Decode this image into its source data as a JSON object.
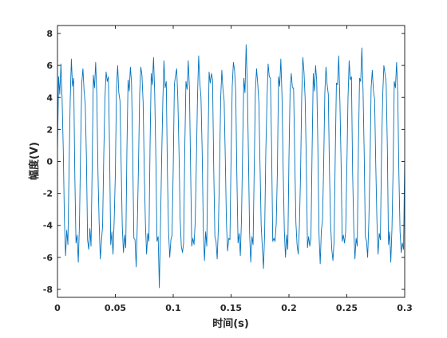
{
  "chart_data": {
    "type": "line",
    "x_label": "时间(s)",
    "y_label": "幅度(V)",
    "xlim": [
      0,
      0.3
    ],
    "ylim": [
      -8.5,
      8.5
    ],
    "xticks": [
      0,
      0.05,
      0.1,
      0.15,
      0.2,
      0.25,
      0.3
    ],
    "yticks": [
      -8,
      -6,
      -4,
      -2,
      0,
      2,
      4,
      6,
      8
    ],
    "grid": false,
    "box": true,
    "x": [
      0,
      0.001,
      0.002,
      0.003,
      0.004,
      0.005,
      0.006,
      0.007,
      0.008,
      0.009,
      0.01,
      0.011,
      0.012,
      0.013,
      0.014,
      0.015,
      0.016,
      0.017,
      0.018,
      0.019,
      0.02,
      0.021,
      0.022,
      0.023,
      0.024,
      0.025,
      0.026,
      0.027,
      0.028,
      0.029,
      0.03,
      0.031,
      0.032,
      0.033,
      0.034,
      0.035,
      0.036,
      0.037,
      0.038,
      0.039,
      0.04,
      0.041,
      0.042,
      0.043,
      0.044,
      0.045,
      0.046,
      0.047,
      0.048,
      0.049,
      0.05,
      0.051,
      0.052,
      0.053,
      0.054,
      0.055,
      0.056,
      0.057,
      0.058,
      0.059,
      0.06,
      0.061,
      0.062,
      0.063,
      0.064,
      0.065,
      0.066,
      0.067,
      0.068,
      0.069,
      0.07,
      0.071,
      0.072,
      0.073,
      0.074,
      0.075,
      0.076,
      0.077,
      0.078,
      0.079,
      0.08,
      0.081,
      0.082,
      0.083,
      0.084,
      0.085,
      0.086,
      0.087,
      0.088,
      0.089,
      0.09,
      0.091,
      0.092,
      0.093,
      0.094,
      0.095,
      0.096,
      0.097,
      0.098,
      0.099,
      0.1,
      0.101,
      0.102,
      0.103,
      0.104,
      0.105,
      0.106,
      0.107,
      0.108,
      0.109,
      0.11,
      0.111,
      0.112,
      0.113,
      0.114,
      0.115,
      0.116,
      0.117,
      0.118,
      0.119,
      0.12,
      0.121,
      0.122,
      0.123,
      0.124,
      0.125,
      0.126,
      0.127,
      0.128,
      0.129,
      0.13,
      0.131,
      0.132,
      0.133,
      0.134,
      0.135,
      0.136,
      0.137,
      0.138,
      0.139,
      0.14,
      0.141,
      0.142,
      0.143,
      0.144,
      0.145,
      0.146,
      0.147,
      0.148,
      0.149,
      0.15,
      0.151,
      0.152,
      0.153,
      0.154,
      0.155,
      0.156,
      0.157,
      0.158,
      0.159,
      0.16,
      0.161,
      0.162,
      0.163,
      0.164,
      0.165,
      0.166,
      0.167,
      0.168,
      0.169,
      0.17,
      0.171,
      0.172,
      0.173,
      0.174,
      0.175,
      0.176,
      0.177,
      0.178,
      0.179,
      0.18,
      0.181,
      0.182,
      0.183,
      0.184,
      0.185,
      0.186,
      0.187,
      0.188,
      0.189,
      0.19,
      0.191,
      0.192,
      0.193,
      0.194,
      0.195,
      0.196,
      0.197,
      0.198,
      0.199,
      0.2,
      0.201,
      0.202,
      0.203,
      0.204,
      0.205,
      0.206,
      0.207,
      0.208,
      0.209,
      0.21,
      0.211,
      0.212,
      0.213,
      0.214,
      0.215,
      0.216,
      0.217,
      0.218,
      0.219,
      0.22,
      0.221,
      0.222,
      0.223,
      0.224,
      0.225,
      0.226,
      0.227,
      0.228,
      0.229,
      0.23,
      0.231,
      0.232,
      0.233,
      0.234,
      0.235,
      0.236,
      0.237,
      0.238,
      0.239,
      0.24,
      0.241,
      0.242,
      0.243,
      0.244,
      0.245,
      0.246,
      0.247,
      0.248,
      0.249,
      0.25,
      0.251,
      0.252,
      0.253,
      0.254,
      0.255,
      0.256,
      0.257,
      0.258,
      0.259,
      0.26,
      0.261,
      0.262,
      0.263,
      0.264,
      0.265,
      0.266,
      0.267,
      0.268,
      0.269,
      0.27,
      0.271,
      0.272,
      0.273,
      0.274,
      0.275,
      0.276,
      0.277,
      0.278,
      0.279,
      0.28,
      0.281,
      0.282,
      0.283,
      0.284,
      0.285,
      0.286,
      0.287,
      0.288,
      0.289,
      0.29,
      0.291,
      0.292,
      0.293,
      0.294,
      0.295,
      0.296,
      0.297,
      0.298,
      0.299,
      0.3
    ],
    "series": [
      {
        "color": "#0072BD",
        "values": [
          0.6,
          5.3,
          4.2,
          6.1,
          3.9,
          0.8,
          -3.7,
          -5.9,
          -4.3,
          -5.2,
          -0.5,
          3.8,
          6.4,
          4.7,
          5.2,
          -0.9,
          -5.1,
          -4.6,
          -6.3,
          -3.9,
          0.9,
          4.9,
          5.8,
          4.4,
          3.6,
          0.3,
          -4.9,
          -5.5,
          -4.2,
          -5.3,
          -0.2,
          5.4,
          4.6,
          6.2,
          4.1,
          -0.7,
          -3.8,
          -6.1,
          -5.0,
          -4.0,
          0.4,
          3.9,
          5.6,
          5.0,
          5.3,
          0.9,
          -5.2,
          -4.4,
          -5.8,
          -3.7,
          -0.8,
          4.6,
          6.0,
          4.3,
          3.8,
          -0.1,
          -4.1,
          -5.7,
          -4.6,
          -5.4,
          0.7,
          5.1,
          4.4,
          5.9,
          4.9,
          0.5,
          -4.8,
          -4.9,
          -6.6,
          -3.9,
          -0.3,
          4.2,
          5.9,
          5.4,
          3.7,
          -0.6,
          -3.9,
          -5.8,
          -4.5,
          -5.0,
          1.0,
          5.5,
          4.8,
          6.5,
          4.3,
          0.2,
          -5.0,
          -4.7,
          -7.9,
          -4.1,
          0.1,
          3.7,
          6.3,
          4.6,
          5.0,
          -0.8,
          -4.4,
          -6.0,
          -4.9,
          -4.6,
          -0.5,
          4.8,
          5.4,
          5.8,
          3.9,
          0.6,
          -3.6,
          -5.3,
          -5.7,
          -5.1,
          0.8,
          5.0,
          4.5,
          6.3,
          4.6,
          -0.3,
          -5.3,
          -4.8,
          -5.2,
          -3.8,
          -0.1,
          4.1,
          6.6,
          4.9,
          4.0,
          0.7,
          -4.2,
          -6.2,
          -4.4,
          -5.3,
          0.5,
          5.6,
          4.9,
          5.5,
          5.1,
          -0.4,
          -4.7,
          -5.0,
          -6.1,
          -4.2,
          -0.7,
          3.9,
          5.7,
          4.5,
          3.8,
          0.2,
          -3.9,
          -5.6,
          -4.8,
          -4.9,
          0.3,
          4.7,
          6.2,
          5.7,
          4.4,
          -0.9,
          -5.1,
          -4.5,
          -5.9,
          -3.6,
          0.9,
          5.2,
          4.3,
          7.3,
          4.8,
          0.4,
          -4.5,
          -6.3,
          -4.7,
          -5.2,
          -0.4,
          4.4,
          5.8,
          4.9,
          3.7,
          -0.2,
          -4.0,
          -5.4,
          -6.7,
          -4.5,
          0.6,
          3.8,
          6.1,
          5.3,
          5.2,
          0.9,
          -5.0,
          -4.8,
          -5.0,
          -3.9,
          -0.6,
          5.3,
          4.7,
          6.4,
          4.1,
          -0.5,
          -4.3,
          -6.0,
          -4.6,
          -5.5,
          0.2,
          4.5,
          5.5,
          4.6,
          4.6,
          0.3,
          -3.8,
          -5.2,
          -5.8,
          -4.1,
          -0.9,
          4.0,
          6.5,
          5.6,
          3.9,
          -0.1,
          -5.4,
          -4.7,
          -5.3,
          -4.8,
          0.7,
          5.5,
          4.4,
          6.0,
          5.0,
          0.8,
          -4.6,
          -6.4,
          -4.3,
          -3.7,
          -0.2,
          4.3,
          5.9,
          4.8,
          4.2,
          -0.6,
          -3.9,
          -5.5,
          -6.2,
          -5.0,
          0.4,
          4.9,
          4.8,
          6.6,
          3.8,
          0.1,
          -5.0,
          -4.6,
          -5.1,
          -4.4,
          -0.5,
          3.9,
          6.3,
          5.1,
          5.3,
          -0.7,
          -4.2,
          -6.1,
          -4.8,
          -5.3,
          0.8,
          5.2,
          5.0,
          7.1,
          4.5,
          0.5,
          -4.7,
          -5.0,
          -6.0,
          -3.8,
          -0.3,
          4.6,
          5.7,
          4.4,
          3.9,
          -0.2,
          -3.7,
          -5.8,
          -4.5,
          -4.9,
          0.6,
          4.1,
          6.0,
          5.5,
          4.9,
          0.9,
          -5.2,
          -4.4,
          -6.3,
          -4.2,
          -0.4,
          5.0,
          4.6,
          6.2,
          4.3,
          -0.8,
          -4.4,
          -5.7,
          -5.1,
          -5.5,
          0.3
        ]
      }
    ]
  }
}
